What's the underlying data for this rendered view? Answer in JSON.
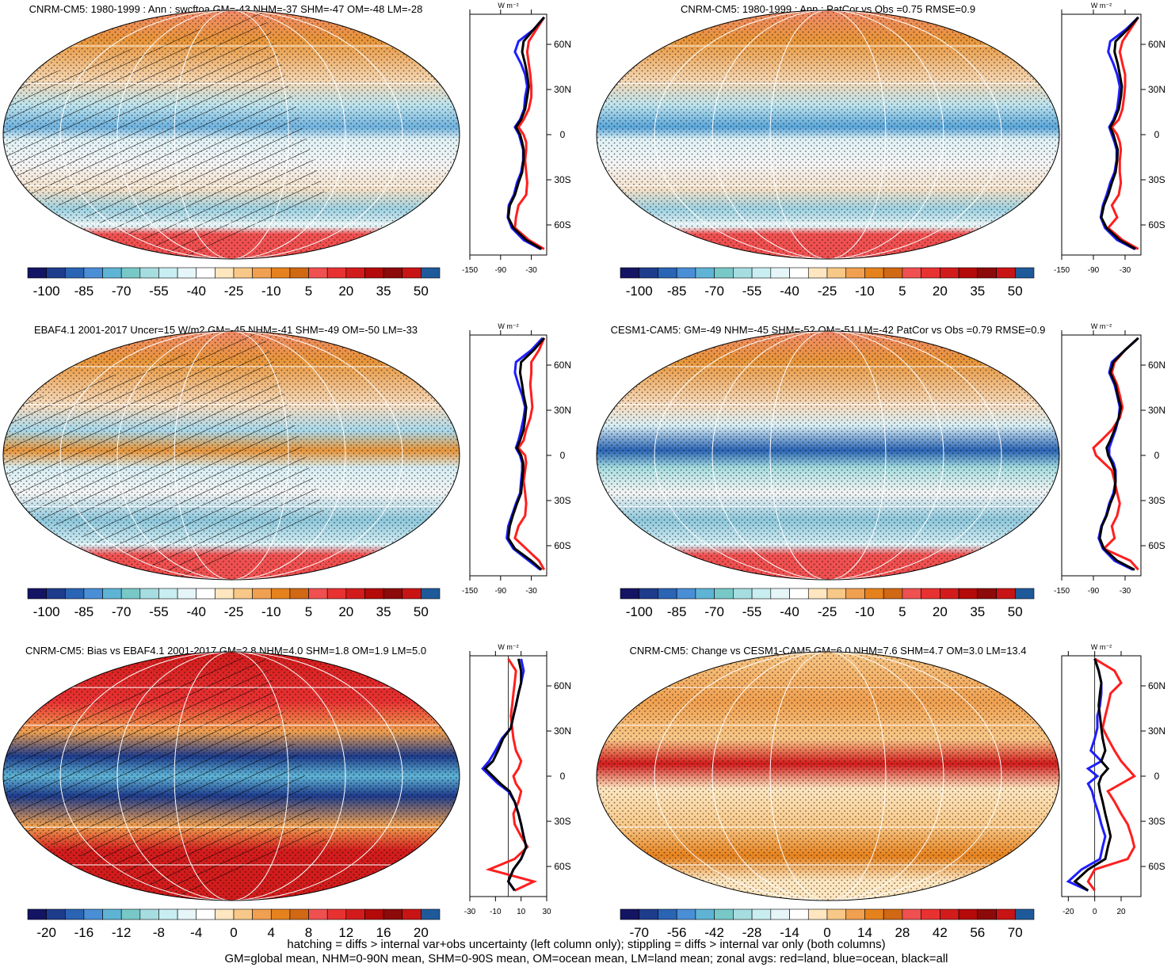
{
  "colorbar_colors": [
    "#141464",
    "#1e3c8c",
    "#2a64b4",
    "#4a8ed6",
    "#5fb4d6",
    "#78c8c8",
    "#a6dde0",
    "#c8eef2",
    "#e6f6f8",
    "#ffffff",
    "#fde6c0",
    "#f8c888",
    "#f0a050",
    "#e6821e",
    "#d06814",
    "#f05050",
    "#e83232",
    "#d21c1c",
    "#b40a0a",
    "#8c0a0a",
    "#c81414",
    "#1e5a9a"
  ],
  "panels": [
    {
      "title": "CNRM-CM5: 1980-1999 : Ann : swcftoa GM=-43 NHM=-37 SHM=-47 OM=-48 LM=-28",
      "colorbar_labels": [
        -100,
        -85,
        -70,
        -55,
        -40,
        -25,
        -10,
        5,
        20,
        35,
        50
      ],
      "chart_data": {
        "type": "line",
        "unit": "W m⁻²",
        "xlim": [
          -150,
          0
        ],
        "xticks": [
          -150,
          -90,
          -30
        ],
        "ylim": [
          -80,
          80
        ],
        "yticks": [
          {
            "value": 60,
            "label": "60N"
          },
          {
            "value": 30,
            "label": "30N"
          },
          0,
          {
            "value": -30,
            "label": "30S"
          },
          {
            "value": -60,
            "label": "60S"
          }
        ],
        "lat": [
          78,
          70,
          62,
          55,
          47,
          40,
          32,
          25,
          17,
          10,
          5,
          0,
          -5,
          -10,
          -17,
          -25,
          -32,
          -40,
          -47,
          -55,
          -62,
          -70,
          -76
        ],
        "series": [
          {
            "color": "#ff1e1e",
            "values": [
              -5,
              -20,
              -35,
              -38,
              -35,
              -32,
              -30,
              -30,
              -35,
              -45,
              -55,
              -45,
              -40,
              -40,
              -42,
              -40,
              -38,
              -40,
              -55,
              -60,
              -62,
              -35,
              -5
            ]
          },
          {
            "color": "#1e1eff",
            "values": [
              -5,
              -25,
              -55,
              -62,
              -50,
              -42,
              -38,
              -42,
              -44,
              -52,
              -62,
              -54,
              -50,
              -46,
              -46,
              -50,
              -58,
              -64,
              -74,
              -76,
              -68,
              -45,
              -12
            ]
          },
          {
            "color": "#000000",
            "values": [
              -5,
              -25,
              -45,
              -48,
              -42,
              -38,
              -35,
              -38,
              -42,
              -50,
              -60,
              -52,
              -48,
              -45,
              -45,
              -48,
              -55,
              -62,
              -72,
              -75,
              -65,
              -40,
              -10
            ]
          }
        ]
      }
    },
    {
      "title": "CNRM-CM5: 1980-1999 : Ann : PatCor vs Obs =0.75 RMSE=0.9",
      "colorbar_labels": [
        -100,
        -85,
        -70,
        -55,
        -40,
        -25,
        -10,
        5,
        20,
        35,
        50
      ],
      "chart_data": {
        "type": "line",
        "unit": "W m⁻²",
        "xlim": [
          -150,
          0
        ],
        "xticks": [
          -150,
          -90,
          -30
        ],
        "ylim": [
          -80,
          80
        ],
        "yticks": [
          {
            "value": 60,
            "label": "60N"
          },
          {
            "value": 30,
            "label": "30N"
          },
          0,
          {
            "value": -30,
            "label": "30S"
          },
          {
            "value": -60,
            "label": "60S"
          }
        ],
        "lat": [
          78,
          70,
          62,
          55,
          47,
          40,
          32,
          25,
          17,
          10,
          5,
          0,
          -5,
          -10,
          -17,
          -25,
          -32,
          -40,
          -47,
          -55,
          -62,
          -70,
          -76
        ],
        "series": [
          {
            "color": "#ff1e1e",
            "values": [
              -5,
              -20,
              -35,
              -40,
              -35,
              -30,
              -30,
              -32,
              -35,
              -42,
              -55,
              -45,
              -40,
              -38,
              -40,
              -40,
              -38,
              -42,
              -55,
              -45,
              -62,
              -35,
              -5
            ]
          },
          {
            "color": "#1e1eff",
            "values": [
              -5,
              -28,
              -58,
              -62,
              -52,
              -45,
              -40,
              -42,
              -45,
              -52,
              -60,
              -55,
              -50,
              -46,
              -46,
              -50,
              -58,
              -65,
              -72,
              -76,
              -68,
              -45,
              -12
            ]
          },
          {
            "color": "#000000",
            "values": [
              -5,
              -25,
              -48,
              -50,
              -44,
              -40,
              -36,
              -38,
              -42,
              -50,
              -58,
              -52,
              -48,
              -44,
              -45,
              -48,
              -55,
              -62,
              -70,
              -75,
              -65,
              -40,
              -10
            ]
          }
        ]
      }
    },
    {
      "title": "EBAF4.1 2001-2017 Uncer=15 W/m2 GM=-45 NHM=-41 SHM=-49 OM=-50 LM=-33",
      "colorbar_labels": [
        -100,
        -85,
        -70,
        -55,
        -40,
        -25,
        -10,
        5,
        20,
        35,
        50
      ],
      "chart_data": {
        "type": "line",
        "unit": "W m⁻²",
        "xlim": [
          -150,
          0
        ],
        "xticks": [
          -150,
          -90,
          -30
        ],
        "ylim": [
          -80,
          80
        ],
        "yticks": [
          {
            "value": 60,
            "label": "60N"
          },
          {
            "value": 30,
            "label": "30N"
          },
          0,
          {
            "value": -30,
            "label": "30S"
          },
          {
            "value": -60,
            "label": "60S"
          }
        ],
        "lat": [
          78,
          70,
          62,
          55,
          47,
          40,
          32,
          25,
          17,
          10,
          5,
          0,
          -5,
          -10,
          -17,
          -25,
          -32,
          -40,
          -47,
          -55,
          -62,
          -70,
          -76
        ],
        "series": [
          {
            "color": "#ff1e1e",
            "values": [
              -5,
              -15,
              -30,
              -30,
              -32,
              -30,
              -28,
              -32,
              -40,
              -45,
              -55,
              -42,
              -40,
              -42,
              -45,
              -42,
              -40,
              -42,
              -55,
              -62,
              -40,
              -15,
              -5
            ]
          },
          {
            "color": "#1e1eff",
            "values": [
              -8,
              -30,
              -60,
              -62,
              -55,
              -48,
              -42,
              -45,
              -50,
              -55,
              -60,
              -52,
              -48,
              -48,
              -50,
              -52,
              -60,
              -68,
              -75,
              -78,
              -65,
              -35,
              -12
            ]
          },
          {
            "color": "#000000",
            "values": [
              -5,
              -25,
              -50,
              -52,
              -48,
              -45,
              -40,
              -42,
              -45,
              -52,
              -58,
              -50,
              -46,
              -46,
              -48,
              -50,
              -58,
              -66,
              -72,
              -75,
              -62,
              -30,
              -10
            ]
          }
        ]
      }
    },
    {
      "title": "CESM1-CAM5: GM=-49 NHM=-45 SHM=-52 OM=-51 LM=-42 PatCor vs Obs =0.79 RMSE=0.9",
      "colorbar_labels": [
        -100,
        -85,
        -70,
        -55,
        -40,
        -25,
        -10,
        5,
        20,
        35,
        50
      ],
      "chart_data": {
        "type": "line",
        "unit": "W m⁻²",
        "xlim": [
          -150,
          0
        ],
        "xticks": [
          -150,
          -90,
          -30
        ],
        "ylim": [
          -80,
          80
        ],
        "yticks": [
          {
            "value": 60,
            "label": "60N"
          },
          {
            "value": 30,
            "label": "30N"
          },
          0,
          {
            "value": -30,
            "label": "30S"
          },
          {
            "value": -60,
            "label": "60S"
          }
        ],
        "lat": [
          78,
          70,
          62,
          55,
          47,
          40,
          32,
          25,
          17,
          10,
          5,
          0,
          -5,
          -10,
          -17,
          -25,
          -32,
          -40,
          -47,
          -55,
          -62,
          -70,
          -76
        ],
        "series": [
          {
            "color": "#ff1e1e",
            "values": [
              -5,
              -30,
              -50,
              -55,
              -45,
              -40,
              -35,
              -40,
              -55,
              -75,
              -90,
              -85,
              -70,
              -55,
              -50,
              -45,
              -40,
              -45,
              -55,
              -50,
              -70,
              -20,
              -5
            ]
          },
          {
            "color": "#1e1eff",
            "values": [
              -5,
              -30,
              -55,
              -60,
              -50,
              -45,
              -40,
              -42,
              -48,
              -55,
              -60,
              -60,
              -52,
              -48,
              -48,
              -52,
              -60,
              -66,
              -75,
              -80,
              -72,
              -50,
              -15
            ]
          },
          {
            "color": "#000000",
            "values": [
              -5,
              -30,
              -52,
              -58,
              -48,
              -44,
              -38,
              -42,
              -50,
              -58,
              -65,
              -62,
              -55,
              -50,
              -48,
              -50,
              -58,
              -65,
              -74,
              -78,
              -70,
              -45,
              -12
            ]
          }
        ]
      }
    },
    {
      "title": "CNRM-CM5: Bias vs EBAF4.1 2001-2017 GM=2.8 NHM=4.0 SHM=1.8 OM=1.9 LM=5.0",
      "colorbar_labels": [
        -20,
        -16,
        -12,
        -8,
        -4,
        0,
        4,
        8,
        12,
        16,
        20
      ],
      "chart_data": {
        "type": "line",
        "unit": "W m⁻²",
        "xlim": [
          -30,
          30
        ],
        "xticks": [
          -30,
          -10,
          10,
          30
        ],
        "zero_line": true,
        "ylim": [
          -80,
          80
        ],
        "yticks": [
          {
            "value": 60,
            "label": "60N"
          },
          {
            "value": 30,
            "label": "30N"
          },
          0,
          {
            "value": -30,
            "label": "30S"
          },
          {
            "value": -60,
            "label": "60S"
          }
        ],
        "lat": [
          78,
          70,
          62,
          55,
          47,
          40,
          32,
          25,
          17,
          10,
          5,
          0,
          -5,
          -10,
          -17,
          -25,
          -32,
          -40,
          -47,
          -55,
          -62,
          -70,
          -76
        ],
        "series": [
          {
            "color": "#ff1e1e",
            "values": [
              0,
              6,
              5,
              4,
              3,
              2,
              3,
              4,
              6,
              10,
              8,
              4,
              6,
              10,
              8,
              4,
              5,
              10,
              15,
              5,
              -15,
              20,
              5
            ]
          },
          {
            "color": "#1e1eff",
            "values": [
              10,
              12,
              10,
              8,
              6,
              4,
              2,
              -5,
              -10,
              -15,
              -20,
              -14,
              -8,
              0,
              5,
              8,
              10,
              12,
              14,
              10,
              4,
              0,
              5
            ]
          },
          {
            "color": "#000000",
            "values": [
              8,
              10,
              10,
              8,
              6,
              4,
              2,
              -4,
              -8,
              -12,
              -18,
              -12,
              -6,
              1,
              5,
              8,
              10,
              12,
              14,
              10,
              4,
              0,
              5
            ]
          }
        ]
      }
    },
    {
      "title": "CNRM-CM5: Change vs CESM1-CAM5 GM=6.0 NHM=7.6 SHM=4.7 OM=3.0 LM=13.4",
      "colorbar_labels": [
        -70,
        -56,
        -42,
        -28,
        -14,
        0,
        14,
        28,
        42,
        56,
        70
      ],
      "chart_data": {
        "type": "line",
        "unit": "W m⁻²",
        "xlim": [
          -25,
          35
        ],
        "xticks": [
          -20,
          0,
          20
        ],
        "zero_line": true,
        "ylim": [
          -80,
          80
        ],
        "yticks": [
          {
            "value": 60,
            "label": "60N"
          },
          {
            "value": 30,
            "label": "30N"
          },
          0,
          {
            "value": -30,
            "label": "30S"
          },
          {
            "value": -60,
            "label": "60S"
          }
        ],
        "lat": [
          78,
          70,
          62,
          55,
          47,
          40,
          32,
          25,
          17,
          10,
          5,
          0,
          -5,
          -10,
          -17,
          -25,
          -32,
          -40,
          -47,
          -55,
          -62,
          -70,
          -76
        ],
        "series": [
          {
            "color": "#ff1e1e",
            "values": [
              0,
              15,
              20,
              12,
              10,
              8,
              6,
              10,
              15,
              20,
              25,
              30,
              20,
              10,
              15,
              20,
              25,
              28,
              30,
              25,
              0,
              -5,
              0
            ]
          },
          {
            "color": "#1e1eff",
            "values": [
              0,
              3,
              5,
              5,
              4,
              2,
              2,
              0,
              -3,
              5,
              -5,
              2,
              -5,
              -2,
              0,
              3,
              5,
              8,
              6,
              4,
              -10,
              -20,
              -5
            ]
          },
          {
            "color": "#000000",
            "values": [
              0,
              3,
              5,
              4,
              3,
              4,
              5,
              6,
              8,
              5,
              10,
              5,
              3,
              4,
              6,
              8,
              10,
              12,
              10,
              8,
              -5,
              -15,
              -5
            ]
          }
        ]
      }
    }
  ],
  "footer": [
    "hatching = diffs > internal var+obs uncertainty (left column only); stippling = diffs > internal var only (both columns)",
    "GM=global mean, NHM=0-90N mean, SHM=0-90S mean, OM=ocean mean, LM=land mean; zonal avgs: red=land, blue=ocean, black=all"
  ]
}
